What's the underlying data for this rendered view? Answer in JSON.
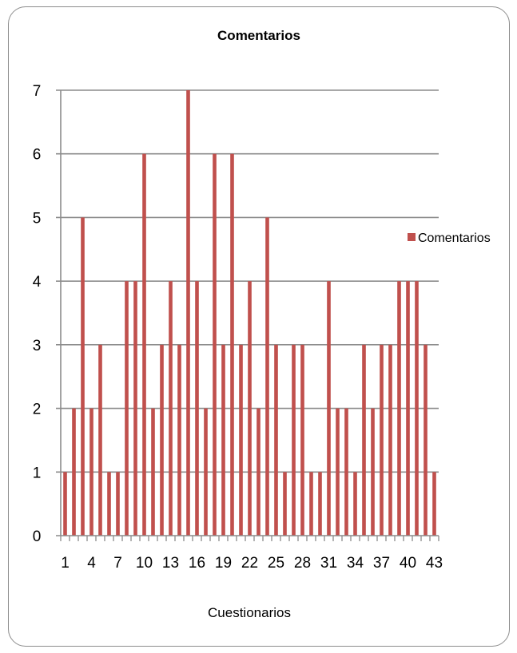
{
  "chart_data": {
    "type": "bar",
    "title": "Comentarios",
    "xlabel": "Cuestionarios",
    "ylabel": "",
    "ylim": [
      0,
      7
    ],
    "yticks": [
      0,
      1,
      2,
      3,
      4,
      5,
      6,
      7
    ],
    "categories": [
      1,
      2,
      3,
      4,
      5,
      6,
      7,
      8,
      9,
      10,
      11,
      12,
      13,
      14,
      15,
      16,
      17,
      18,
      19,
      20,
      21,
      22,
      23,
      24,
      25,
      26,
      27,
      28,
      29,
      30,
      31,
      32,
      33,
      34,
      35,
      36,
      37,
      38,
      39,
      40,
      41,
      42,
      43
    ],
    "xtick_labels": [
      "1",
      "4",
      "7",
      "10",
      "13",
      "16",
      "19",
      "22",
      "25",
      "28",
      "31",
      "34",
      "37",
      "40",
      "43"
    ],
    "series": [
      {
        "name": "Comentarios",
        "color": "#c0504d",
        "values": [
          1,
          2,
          5,
          2,
          3,
          1,
          1,
          4,
          4,
          6,
          2,
          3,
          4,
          3,
          7,
          4,
          2,
          6,
          3,
          6,
          3,
          4,
          2,
          5,
          3,
          1,
          3,
          3,
          1,
          1,
          4,
          2,
          2,
          1,
          3,
          2,
          3,
          3,
          4,
          4,
          4,
          3,
          1
        ]
      }
    ],
    "grid": true,
    "legend": "right"
  }
}
